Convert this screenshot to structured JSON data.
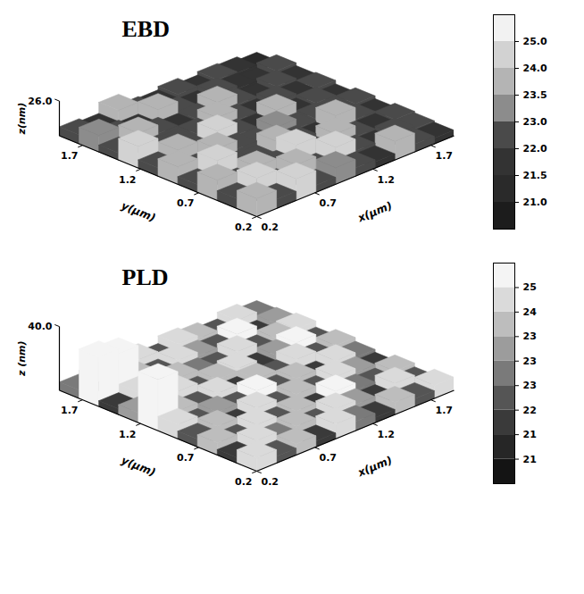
{
  "chart_data": [
    {
      "type": "surface",
      "title": "EBD",
      "x_label": "x(µm)",
      "y_label": "y(µm)",
      "z_label": "z(nm)",
      "xlim": [
        0.2,
        1.9
      ],
      "xticks": [
        0.2,
        0.7,
        1.2,
        1.7
      ],
      "ylim": [
        0.2,
        1.9
      ],
      "yticks": [
        0.2,
        0.7,
        1.2,
        1.7
      ],
      "zlim": [
        21,
        26
      ],
      "zticks": [
        {
          "value": 26,
          "label": "26.0"
        }
      ],
      "heights": [
        [
          23.6,
          22.3,
          24.1,
          22.0,
          23.4,
          22.2,
          21.9,
          23.7,
          22.1,
          21.8
        ],
        [
          22.4,
          24.2,
          22.1,
          23.8,
          22.0,
          24.0,
          22.3,
          21.8,
          22.4,
          22.0
        ],
        [
          23.9,
          22.2,
          23.5,
          22.4,
          24.3,
          22.1,
          23.6,
          22.0,
          21.9,
          22.2
        ],
        [
          22.1,
          24.4,
          22.3,
          22.0,
          23.7,
          22.5,
          21.8,
          23.9,
          22.2,
          21.7
        ],
        [
          23.5,
          22.0,
          23.8,
          22.6,
          22.1,
          23.4,
          22.0,
          22.3,
          21.6,
          22.1
        ],
        [
          22.2,
          23.6,
          22.1,
          24.0,
          22.3,
          21.9,
          23.5,
          21.8,
          22.2,
          21.5
        ],
        [
          24.1,
          22.3,
          22.0,
          22.4,
          23.6,
          22.1,
          21.7,
          22.4,
          21.9,
          22.0
        ],
        [
          22.0,
          23.7,
          22.5,
          21.9,
          22.2,
          23.5,
          22.0,
          21.6,
          22.3,
          21.8
        ],
        [
          23.4,
          22.1,
          21.8,
          23.6,
          22.0,
          21.7,
          22.4,
          21.9,
          21.5,
          22.2
        ],
        [
          22.3,
          21.9,
          23.5,
          22.0,
          21.8,
          22.3,
          21.6,
          22.1,
          21.9,
          21.4
        ]
      ],
      "colorbar": {
        "ticks": [
          {
            "value": 21,
            "label": "21.0"
          },
          {
            "value": 21.5,
            "label": "21.5"
          },
          {
            "value": 22,
            "label": "22.0"
          },
          {
            "value": 23,
            "label": "23.0"
          },
          {
            "value": 23.5,
            "label": "23.5"
          },
          {
            "value": 24,
            "label": "24.0"
          },
          {
            "value": 25,
            "label": "25.0"
          }
        ],
        "colors": [
          "#1c1c1c",
          "#2a2a2a",
          "#333333",
          "#4a4a4a",
          "#8c8c8c",
          "#b4b4b4",
          "#d2d2d2",
          "#f2f2f2"
        ]
      }
    },
    {
      "type": "surface",
      "title": "PLD",
      "x_label": "x(µm)",
      "y_label": "y(µm)",
      "z_label": "z (nm)",
      "xlim": [
        0.2,
        1.9
      ],
      "xticks": [
        0.2,
        0.7,
        1.2,
        1.7
      ],
      "ylim": [
        0.2,
        1.9
      ],
      "yticks": [
        0.2,
        0.7,
        1.2,
        1.7
      ],
      "zlim": [
        20,
        40
      ],
      "zticks": [
        {
          "value": 40,
          "label": "40.0"
        }
      ],
      "heights": [
        [
          24.2,
          22.1,
          23.5,
          21.8,
          24.6,
          22.9,
          21.6,
          23.8,
          22.4,
          24.1
        ],
        [
          21.7,
          24.5,
          22.6,
          23.9,
          21.9,
          24.3,
          23.1,
          21.8,
          24.7,
          22.3
        ],
        [
          23.8,
          22.0,
          24.4,
          22.5,
          23.6,
          21.7,
          24.8,
          22.6,
          21.9,
          23.5
        ],
        [
          22.4,
          23.9,
          21.8,
          24.6,
          22.2,
          23.8,
          22.1,
          24.3,
          23.0,
          21.8
        ],
        [
          24.5,
          21.9,
          23.3,
          22.1,
          24.9,
          22.4,
          23.7,
          21.6,
          24.2,
          22.7
        ],
        [
          36.0,
          23.6,
          22.2,
          24.1,
          21.8,
          23.5,
          22.0,
          24.6,
          22.3,
          23.9
        ],
        [
          23.1,
          22.3,
          24.7,
          21.9,
          23.4,
          24.2,
          21.7,
          23.3,
          24.8,
          22.1
        ],
        [
          21.8,
          24.4,
          22.5,
          23.8,
          22.6,
          21.9,
          24.5,
          22.2,
          23.6,
          24.0
        ],
        [
          35.5,
          34.0,
          23.9,
          22.2,
          24.3,
          23.1,
          22.4,
          24.9,
          21.7,
          23.2
        ],
        [
          22.6,
          23.7,
          21.8,
          24.5,
          22.0,
          24.4,
          23.5,
          22.1,
          24.2,
          22.8
        ]
      ],
      "colorbar": {
        "ticks": [
          {
            "value": 20.9,
            "label": "21"
          },
          {
            "value": 21.4,
            "label": "21"
          },
          {
            "value": 21.9,
            "label": "22"
          },
          {
            "value": 22.6,
            "label": "23"
          },
          {
            "value": 23.0,
            "label": "23"
          },
          {
            "value": 23.4,
            "label": "23"
          },
          {
            "value": 24.0,
            "label": "24"
          },
          {
            "value": 24.8,
            "label": "25"
          }
        ],
        "colors": [
          "#141414",
          "#262626",
          "#3a3a3a",
          "#555555",
          "#7a7a7a",
          "#9c9c9c",
          "#bdbdbd",
          "#dadada",
          "#f4f4f4"
        ]
      }
    }
  ]
}
